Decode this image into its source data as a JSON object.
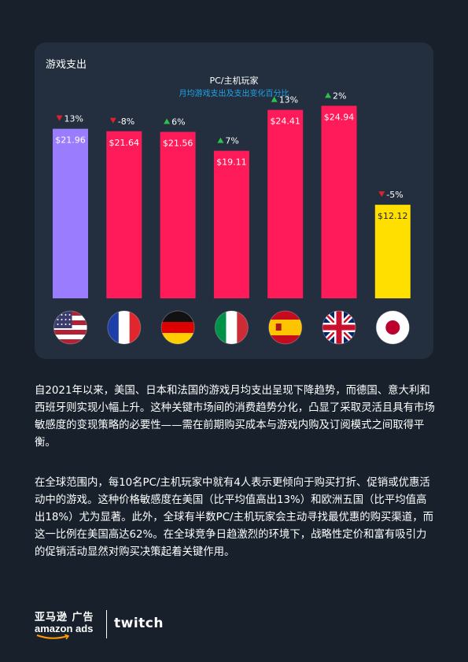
{
  "card": {
    "title": "游戏支出"
  },
  "chart_data": {
    "type": "bar",
    "title": "PC/主机玩家",
    "subtitle": "月均游戏支出及支出变化百分比",
    "categories": [
      "美国",
      "法国",
      "德国",
      "意大利",
      "西班牙",
      "英国",
      "日本"
    ],
    "values": [
      21.96,
      21.64,
      21.56,
      19.11,
      24.41,
      24.94,
      12.12
    ],
    "value_labels": [
      "$21.96",
      "$21.64",
      "$21.56",
      "$19.11",
      "$24.41",
      "$24.94",
      "$12.12"
    ],
    "changes": [
      {
        "dir": "down",
        "label": "13%"
      },
      {
        "dir": "down",
        "label": "-8%"
      },
      {
        "dir": "up",
        "label": "6%"
      },
      {
        "dir": "up",
        "label": "7%"
      },
      {
        "dir": "up",
        "label": "13%"
      },
      {
        "dir": "up",
        "label": "2%"
      },
      {
        "dir": "down",
        "label": "-5%"
      }
    ],
    "bar_colors": [
      "#9a7dff",
      "#ff1a5a",
      "#ff1a5a",
      "#ff1a5a",
      "#ff1a5a",
      "#ff1a5a",
      "#ffdf00"
    ],
    "up_color": "#2fbf4a",
    "down_color": "#e0202a",
    "flags": [
      "us-flag-icon",
      "fr-flag-icon",
      "de-flag-icon",
      "it-flag-icon",
      "es-flag-icon",
      "gb-flag-icon",
      "jp-flag-icon"
    ],
    "ylim": [
      0,
      26
    ]
  },
  "body": {
    "p1": "自2021年以来，美国、日本和法国的游戏月均支出呈现下降趋势，而德国、意大利和西班牙则实现小幅上升。这种关键市场间的消费趋势分化，凸显了采取灵活且具有市场敏感度的变现策略的必要性——需在前期购买成本与游戏内购及订阅模式之间取得平衡。",
    "p2": "在全球范围内，每10名PC/主机玩家中就有4人表示更倾向于购买打折、促销或优惠活动中的游戏。这种价格敏感度在美国（比平均值高出13%）和欧洲五国（比平均值高出18%）尤为显著。此外，全球有半数PC/主机玩家会主动寻找最优惠的购买渠道，而这一比例在美国高达62%。在全球竞争日趋激烈的环境下，战略性定价和富有吸引力的促销活动显然对购买决策起着关键作用。"
  },
  "footer": {
    "amazon_cn": "亚马逊 广告",
    "amazon_en": "amazon ads",
    "twitch": "twitch"
  }
}
